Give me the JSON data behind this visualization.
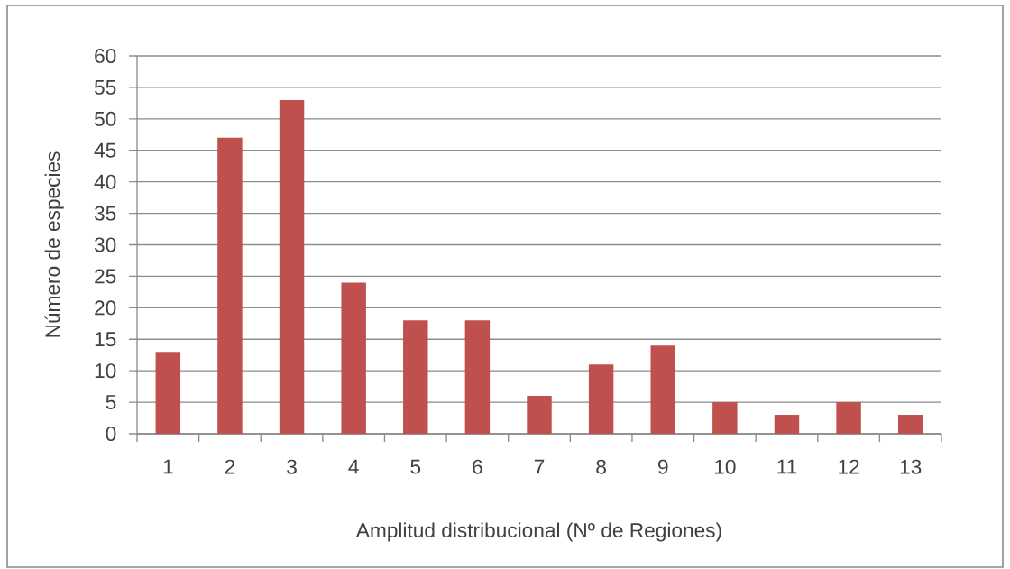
{
  "chart_data": {
    "type": "bar",
    "xlabel": "Amplitud distribucional (Nº de Regiones)",
    "ylabel": "Número de especies",
    "categories": [
      "1",
      "2",
      "3",
      "4",
      "5",
      "6",
      "7",
      "8",
      "9",
      "10",
      "11",
      "12",
      "13"
    ],
    "values": [
      13,
      47,
      53,
      24,
      18,
      18,
      6,
      11,
      14,
      5,
      3,
      5,
      3
    ],
    "color": "#c0504d",
    "ylim": [
      0,
      60
    ],
    "yticks": [
      0,
      5,
      10,
      15,
      20,
      25,
      30,
      35,
      40,
      45,
      50,
      55,
      60
    ],
    "grid": "y"
  }
}
